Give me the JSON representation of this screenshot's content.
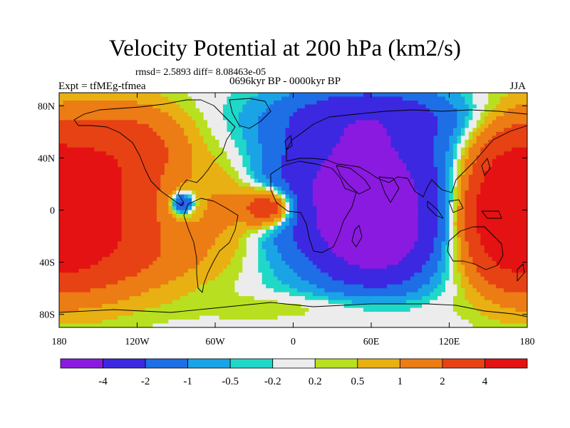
{
  "chart_data": {
    "type": "heatmap",
    "title": "Velocity Potential at 200 hPa (km2/s)",
    "stats": "rmsd= 2.5893 diff= 8.08463e-05",
    "experiment": "Expt = tfMEg-tfmea",
    "period": "0696kyr BP - 0000kyr BP",
    "season": "JJA",
    "xlim": [
      -180,
      180
    ],
    "ylim": [
      -90,
      90
    ],
    "x_ticks": [
      {
        "value": -180,
        "label": "180"
      },
      {
        "value": -120,
        "label": "120W"
      },
      {
        "value": -60,
        "label": "60W"
      },
      {
        "value": 0,
        "label": "0"
      },
      {
        "value": 60,
        "label": "60E"
      },
      {
        "value": 120,
        "label": "120E"
      },
      {
        "value": 180,
        "label": "180"
      }
    ],
    "y_ticks": [
      {
        "value": 80,
        "label": "80N"
      },
      {
        "value": 40,
        "label": "40N"
      },
      {
        "value": 0,
        "label": "0"
      },
      {
        "value": -40,
        "label": "40S"
      },
      {
        "value": -80,
        "label": "80S"
      }
    ],
    "colorbar": {
      "colors": [
        "#8a1ae0",
        "#3c28e0",
        "#1e6ee6",
        "#1aa4e6",
        "#20d8c8",
        "#ececec",
        "#b8e020",
        "#e8b012",
        "#ec7c14",
        "#e64214",
        "#e41212"
      ],
      "labels": [
        "-4",
        "-2",
        "-1",
        "-0.5",
        "-0.2",
        "0.2",
        "0.5",
        "1",
        "2",
        "4"
      ]
    },
    "centers": [
      {
        "lon": 55,
        "lat": 15,
        "amp": -5.6,
        "sx": 48,
        "sy": 42
      },
      {
        "lon": 65,
        "lat": -25,
        "amp": -3.0,
        "sx": 28,
        "sy": 22
      },
      {
        "lon": 60,
        "lat": 72,
        "amp": -1.6,
        "sx": 55,
        "sy": 14
      },
      {
        "lon": -165,
        "lat": 5,
        "amp": 4.6,
        "sx": 42,
        "sy": 42
      },
      {
        "lon": -118,
        "lat": 50,
        "amp": 1.6,
        "sx": 30,
        "sy": 22
      },
      {
        "lon": -18,
        "lat": 2,
        "amp": 4.2,
        "sx": 14,
        "sy": 10
      },
      {
        "lon": -50,
        "lat": 5,
        "amp": 1.2,
        "sx": 18,
        "sy": 25
      },
      {
        "lon": -85,
        "lat": 5,
        "amp": -3.3,
        "sx": 6,
        "sy": 6
      },
      {
        "lon": 165,
        "lat": 5,
        "amp": 4.0,
        "sx": 25,
        "sy": 35
      },
      {
        "lon": 175,
        "lat": -20,
        "amp": 1.5,
        "sx": 30,
        "sy": 25
      },
      {
        "lon": -110,
        "lat": -35,
        "amp": 1.0,
        "sx": 50,
        "sy": 20
      },
      {
        "lon": 20,
        "lat": -75,
        "amp": 0.6,
        "sx": 60,
        "sy": 8
      }
    ]
  }
}
